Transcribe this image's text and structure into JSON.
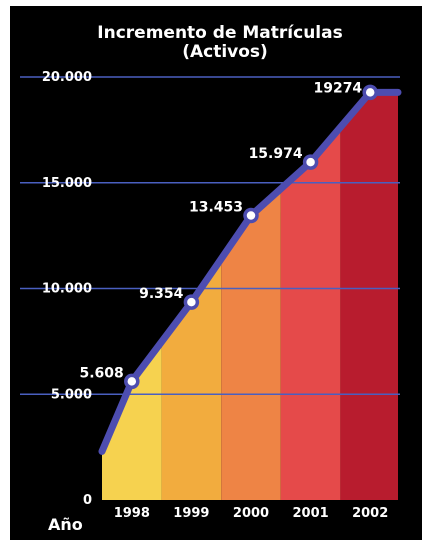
{
  "chart_data": {
    "type": "area",
    "title": "Incremento de Matrículas",
    "subtitle": "(Activos)",
    "xlabel": "Año",
    "ylabel": "",
    "categories": [
      "1998",
      "1999",
      "2000",
      "2001",
      "2002"
    ],
    "series": [
      {
        "values": [
          5608,
          9354,
          13453,
          15974,
          19274
        ],
        "data_labels": [
          "5.608",
          "9.354",
          "13.453",
          "15.974",
          "19274"
        ]
      }
    ],
    "start_value": 2300,
    "ylim": [
      0,
      20000
    ],
    "yticks": [
      0,
      5000,
      10000,
      15000,
      20000
    ],
    "ytick_labels": [
      "0",
      "5.000",
      "10.000",
      "15.000",
      "20.000"
    ],
    "grid": true,
    "legend": "none",
    "colors": {
      "background": "#000000",
      "gridline": "#4a5fc0",
      "line": "#4d4db0",
      "bands": [
        "#f6d24f",
        "#f2ac3e",
        "#ee8445",
        "#e54a4a",
        "#b81c2e"
      ]
    }
  }
}
